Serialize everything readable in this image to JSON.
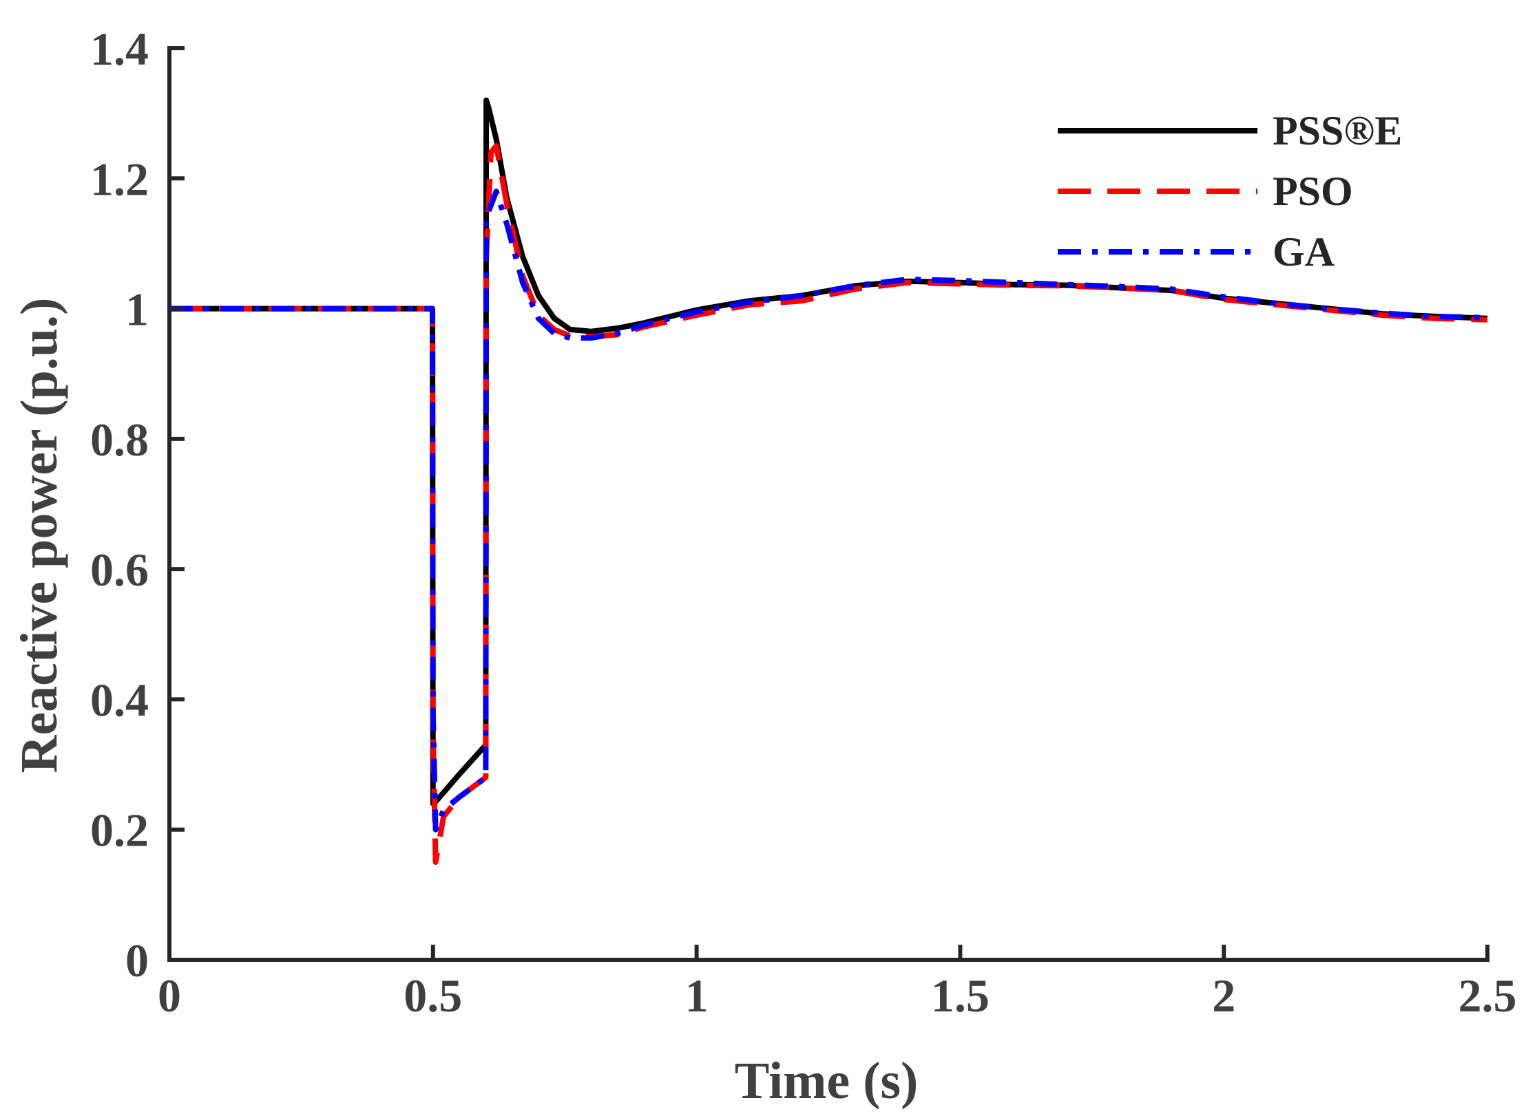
{
  "chart_data": {
    "type": "line",
    "title": "",
    "xlabel": "Time (s)",
    "ylabel": "Reactive power (p.u.)",
    "xlim": [
      0,
      2.5
    ],
    "ylim": [
      0,
      1.4
    ],
    "xticks": [
      0,
      0.5,
      1,
      1.5,
      2,
      2.5
    ],
    "xtick_labels": [
      "0",
      "0.5",
      "1",
      "1.5",
      "2",
      "2.5"
    ],
    "yticks": [
      0,
      0.2,
      0.4,
      0.6,
      0.8,
      1,
      1.2,
      1.4
    ],
    "ytick_labels": [
      "0",
      "0.2",
      "0.4",
      "0.6",
      "0.8",
      "1",
      "1.2",
      "1.4"
    ],
    "grid": false,
    "legend_position": "top-right",
    "series": [
      {
        "name": "PSS®E",
        "color": "#000000",
        "style": "solid",
        "x": [
          0,
          0.499,
          0.5,
          0.502,
          0.55,
          0.6,
          0.601,
          0.605,
          0.62,
          0.64,
          0.67,
          0.7,
          0.73,
          0.76,
          0.8,
          0.85,
          0.9,
          1.0,
          1.1,
          1.2,
          1.3,
          1.4,
          1.5,
          1.6,
          1.7,
          1.8,
          1.9,
          2.0,
          2.1,
          2.2,
          2.3,
          2.4,
          2.5
        ],
        "y": [
          1.0,
          1.0,
          0.24,
          0.24,
          0.285,
          0.33,
          1.32,
          1.31,
          1.26,
          1.17,
          1.08,
          1.02,
          0.985,
          0.968,
          0.965,
          0.97,
          0.978,
          0.998,
          1.012,
          1.02,
          1.035,
          1.042,
          1.04,
          1.037,
          1.036,
          1.032,
          1.028,
          1.016,
          1.008,
          1.0,
          0.992,
          0.988,
          0.985
        ]
      },
      {
        "name": "PSO",
        "color": "#ff0000",
        "style": "dashed",
        "x": [
          0,
          0.499,
          0.5,
          0.505,
          0.52,
          0.55,
          0.6,
          0.601,
          0.61,
          0.62,
          0.64,
          0.67,
          0.7,
          0.73,
          0.76,
          0.8,
          0.85,
          0.9,
          1.0,
          1.1,
          1.2,
          1.3,
          1.4,
          1.5,
          1.6,
          1.7,
          1.8,
          1.9,
          2.0,
          2.1,
          2.2,
          2.3,
          2.4,
          2.5
        ],
        "y": [
          1.0,
          1.0,
          0.35,
          0.15,
          0.22,
          0.25,
          0.28,
          1.08,
          1.24,
          1.25,
          1.16,
          1.05,
          0.99,
          0.968,
          0.958,
          0.957,
          0.96,
          0.972,
          0.99,
          1.006,
          1.012,
          1.03,
          1.04,
          1.038,
          1.036,
          1.035,
          1.032,
          1.028,
          1.014,
          1.006,
          0.998,
          0.99,
          0.985,
          0.983
        ]
      },
      {
        "name": "GA",
        "color": "#0000ff",
        "style": "dashdot",
        "x": [
          0,
          0.499,
          0.5,
          0.505,
          0.52,
          0.55,
          0.6,
          0.601,
          0.62,
          0.64,
          0.67,
          0.7,
          0.73,
          0.76,
          0.8,
          0.85,
          0.9,
          1.0,
          1.1,
          1.2,
          1.3,
          1.4,
          1.5,
          1.6,
          1.7,
          1.8,
          1.9,
          2.0,
          2.1,
          2.2,
          2.3,
          2.4,
          2.5
        ],
        "y": [
          1.0,
          1.0,
          0.38,
          0.2,
          0.23,
          0.25,
          0.28,
          1.14,
          1.18,
          1.13,
          1.04,
          0.985,
          0.962,
          0.955,
          0.955,
          0.962,
          0.975,
          0.995,
          1.01,
          1.02,
          1.035,
          1.045,
          1.043,
          1.04,
          1.037,
          1.034,
          1.03,
          1.018,
          1.008,
          1.0,
          0.993,
          0.988,
          0.986
        ]
      }
    ]
  }
}
